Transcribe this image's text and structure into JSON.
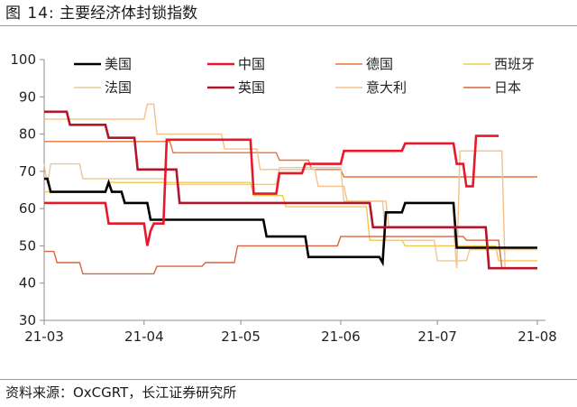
{
  "figure": {
    "label": "图 14:",
    "title": "主要经济体封锁指数",
    "source": "资料来源：OxCGRT，长江证券研究所"
  },
  "chart_data": {
    "type": "line",
    "title": "主要经济体封锁指数",
    "xlabel": "",
    "ylabel": "",
    "x_range": [
      "2021-03-01",
      "2021-08-01"
    ],
    "x_ticks": [
      "21-03",
      "21-04",
      "21-05",
      "21-06",
      "21-07",
      "21-08"
    ],
    "ylim": [
      30,
      100
    ],
    "y_ticks": [
      30,
      40,
      50,
      60,
      70,
      80,
      90,
      100
    ],
    "grid": false,
    "legend_position": "top",
    "series": [
      {
        "name": "美国",
        "color": "#000000",
        "width": 2.6,
        "points": [
          [
            "2021-03-01",
            68
          ],
          [
            "2021-03-02",
            68
          ],
          [
            "2021-03-03",
            64.5
          ],
          [
            "2021-03-20",
            64.5
          ],
          [
            "2021-03-21",
            67
          ],
          [
            "2021-03-22",
            64.5
          ],
          [
            "2021-03-25",
            64.5
          ],
          [
            "2021-03-26",
            61.5
          ],
          [
            "2021-04-02",
            61.5
          ],
          [
            "2021-04-03",
            57
          ],
          [
            "2021-05-08",
            57
          ],
          [
            "2021-05-09",
            52.5
          ],
          [
            "2021-05-21",
            52.5
          ],
          [
            "2021-05-22",
            47
          ],
          [
            "2021-06-13",
            47
          ],
          [
            "2021-06-14",
            45.5
          ],
          [
            "2021-06-15",
            59
          ],
          [
            "2021-06-20",
            59
          ],
          [
            "2021-06-21",
            61.5
          ],
          [
            "2021-07-06",
            61.5
          ],
          [
            "2021-07-07",
            49.5
          ],
          [
            "2021-08-01",
            49.5
          ]
        ]
      },
      {
        "name": "中国",
        "color": "#e8182c",
        "width": 2.6,
        "points": [
          [
            "2021-03-01",
            61.5
          ],
          [
            "2021-03-20",
            61.5
          ],
          [
            "2021-03-21",
            56
          ],
          [
            "2021-04-01",
            56
          ],
          [
            "2021-04-02",
            50
          ],
          [
            "2021-04-03",
            54
          ],
          [
            "2021-04-04",
            56
          ],
          [
            "2021-04-07",
            56
          ],
          [
            "2021-04-08",
            78.5
          ],
          [
            "2021-05-04",
            78.5
          ],
          [
            "2021-05-05",
            64
          ],
          [
            "2021-05-12",
            64
          ],
          [
            "2021-05-13",
            69.5
          ],
          [
            "2021-05-20",
            69.5
          ],
          [
            "2021-05-21",
            72
          ],
          [
            "2021-06-01",
            72
          ],
          [
            "2021-06-02",
            75.5
          ],
          [
            "2021-06-20",
            75.5
          ],
          [
            "2021-06-21",
            77.5
          ],
          [
            "2021-07-06",
            77.5
          ],
          [
            "2021-07-07",
            72
          ],
          [
            "2021-07-09",
            72
          ],
          [
            "2021-07-10",
            66
          ],
          [
            "2021-07-12",
            66
          ],
          [
            "2021-07-13",
            79.5
          ],
          [
            "2021-07-20",
            79.5
          ]
        ]
      },
      {
        "name": "德国",
        "color": "#e8743b",
        "width": 1.4,
        "points": [
          [
            "2021-03-01",
            78
          ],
          [
            "2021-04-09",
            78
          ],
          [
            "2021-04-10",
            75
          ],
          [
            "2021-05-12",
            75
          ],
          [
            "2021-05-13",
            73
          ],
          [
            "2021-05-22",
            73
          ],
          [
            "2021-05-23",
            70.5
          ],
          [
            "2021-06-01",
            70.5
          ],
          [
            "2021-06-02",
            68.5
          ],
          [
            "2021-08-01",
            68.5
          ]
        ]
      },
      {
        "name": "西班牙",
        "color": "#f2c94c",
        "width": 1.4,
        "points": [
          [
            "2021-03-01",
            64.5
          ],
          [
            "2021-03-20",
            64.5
          ],
          [
            "2021-03-21",
            67
          ],
          [
            "2021-05-04",
            67
          ],
          [
            "2021-05-05",
            63.5
          ],
          [
            "2021-05-14",
            63.5
          ],
          [
            "2021-05-15",
            60.5
          ],
          [
            "2021-06-09",
            60.5
          ],
          [
            "2021-06-10",
            51.5
          ],
          [
            "2021-06-20",
            51.5
          ],
          [
            "2021-06-21",
            50
          ],
          [
            "2021-07-19",
            50
          ],
          [
            "2021-07-20",
            46
          ],
          [
            "2021-08-01",
            46
          ]
        ]
      },
      {
        "name": "法国",
        "color": "#e9c89a",
        "width": 1.4,
        "points": [
          [
            "2021-03-01",
            72
          ],
          [
            "2021-03-02",
            66.5
          ],
          [
            "2021-03-03",
            72
          ],
          [
            "2021-03-12",
            72
          ],
          [
            "2021-03-13",
            68
          ],
          [
            "2021-04-07",
            68
          ],
          [
            "2021-04-08",
            66.5
          ],
          [
            "2021-05-12",
            66.5
          ],
          [
            "2021-05-13",
            71
          ],
          [
            "2021-06-01",
            71
          ],
          [
            "2021-06-02",
            62
          ],
          [
            "2021-06-14",
            62
          ],
          [
            "2021-06-15",
            51.5
          ],
          [
            "2021-06-30",
            51.5
          ],
          [
            "2021-07-01",
            46
          ],
          [
            "2021-07-10",
            46
          ],
          [
            "2021-07-11",
            49
          ],
          [
            "2021-08-01",
            49
          ]
        ]
      },
      {
        "name": "英国",
        "color": "#b3162a",
        "width": 2.6,
        "points": [
          [
            "2021-03-01",
            86
          ],
          [
            "2021-03-08",
            86
          ],
          [
            "2021-03-09",
            82.5
          ],
          [
            "2021-03-20",
            82.5
          ],
          [
            "2021-03-21",
            79
          ],
          [
            "2021-03-29",
            79
          ],
          [
            "2021-03-30",
            70.5
          ],
          [
            "2021-04-11",
            70.5
          ],
          [
            "2021-04-12",
            61.5
          ],
          [
            "2021-06-10",
            61.5
          ],
          [
            "2021-06-11",
            55
          ],
          [
            "2021-07-16",
            55
          ],
          [
            "2021-07-17",
            44
          ],
          [
            "2021-08-01",
            44
          ]
        ]
      },
      {
        "name": "意大利",
        "color": "#f5c08a",
        "width": 1.4,
        "points": [
          [
            "2021-03-01",
            84
          ],
          [
            "2021-04-01",
            84
          ],
          [
            "2021-04-02",
            88
          ],
          [
            "2021-04-04",
            88
          ],
          [
            "2021-04-05",
            80
          ],
          [
            "2021-04-25",
            80
          ],
          [
            "2021-04-26",
            76
          ],
          [
            "2021-05-06",
            76
          ],
          [
            "2021-05-07",
            70.5
          ],
          [
            "2021-05-24",
            70.5
          ],
          [
            "2021-05-25",
            66
          ],
          [
            "2021-06-02",
            66
          ],
          [
            "2021-06-03",
            62
          ],
          [
            "2021-06-15",
            62
          ],
          [
            "2021-06-16",
            55
          ],
          [
            "2021-07-06",
            55
          ],
          [
            "2021-07-07",
            44
          ],
          [
            "2021-07-08",
            75.5
          ],
          [
            "2021-07-21",
            75.5
          ],
          [
            "2021-07-22",
            44
          ],
          [
            "2021-08-01",
            44
          ]
        ]
      },
      {
        "name": "日本",
        "color": "#d9643f",
        "width": 1.4,
        "points": [
          [
            "2021-03-01",
            48.5
          ],
          [
            "2021-03-04",
            48.5
          ],
          [
            "2021-03-05",
            45.5
          ],
          [
            "2021-03-12",
            45.5
          ],
          [
            "2021-03-13",
            42.5
          ],
          [
            "2021-04-04",
            42.5
          ],
          [
            "2021-04-05",
            44.5
          ],
          [
            "2021-04-19",
            44.5
          ],
          [
            "2021-04-20",
            45.5
          ],
          [
            "2021-04-29",
            45.5
          ],
          [
            "2021-04-30",
            50
          ],
          [
            "2021-05-31",
            50
          ],
          [
            "2021-06-01",
            52.5
          ],
          [
            "2021-07-09",
            52.5
          ],
          [
            "2021-07-10",
            51.5
          ],
          [
            "2021-07-20",
            51.5
          ],
          [
            "2021-07-21",
            44
          ],
          [
            "2021-08-01",
            44
          ]
        ]
      }
    ]
  }
}
